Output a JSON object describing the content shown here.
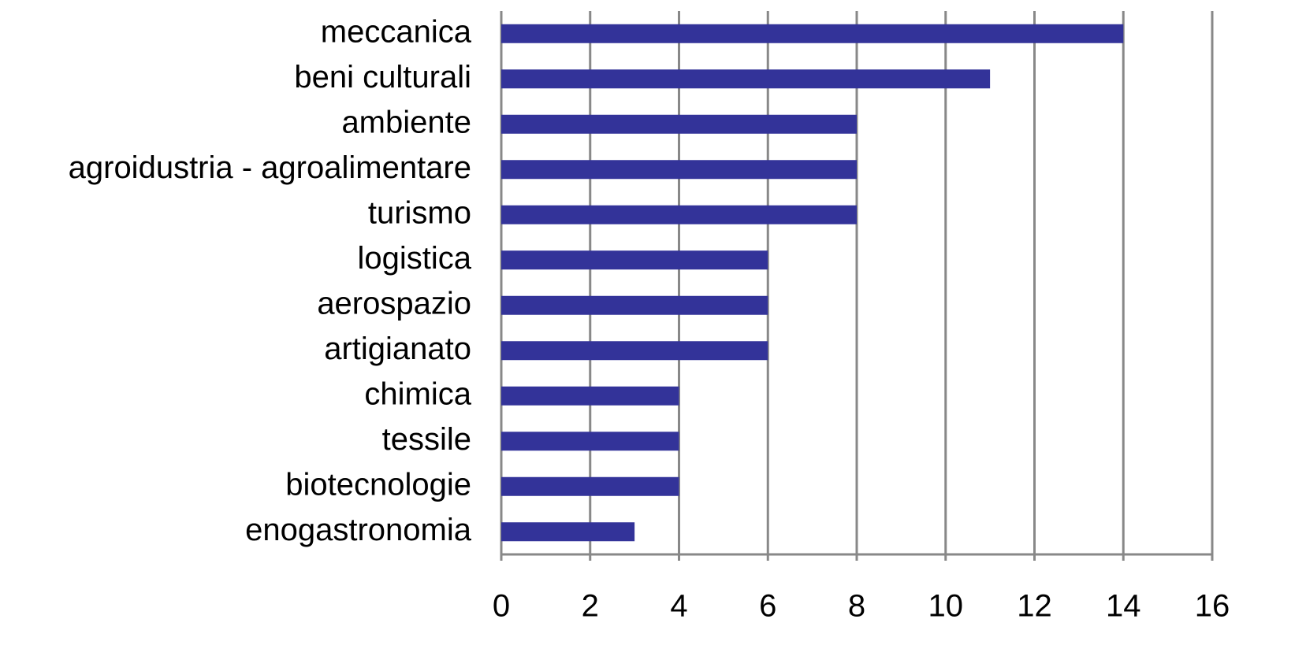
{
  "chart_data": {
    "type": "bar",
    "orientation": "horizontal",
    "categories": [
      "meccanica",
      "beni culturali",
      "ambiente",
      "agroidustria - agroalimentare",
      "turismo",
      "logistica",
      "aerospazio",
      "artigianato",
      "chimica",
      "tessile",
      "biotecnologie",
      "enogastronomia"
    ],
    "values": [
      14,
      11,
      8,
      8,
      8,
      6,
      6,
      6,
      4,
      4,
      4,
      3
    ],
    "color": "#333399",
    "xlim": [
      0,
      16
    ],
    "xticks": [
      0,
      2,
      4,
      6,
      8,
      10,
      12,
      14,
      16
    ],
    "grid": true
  }
}
